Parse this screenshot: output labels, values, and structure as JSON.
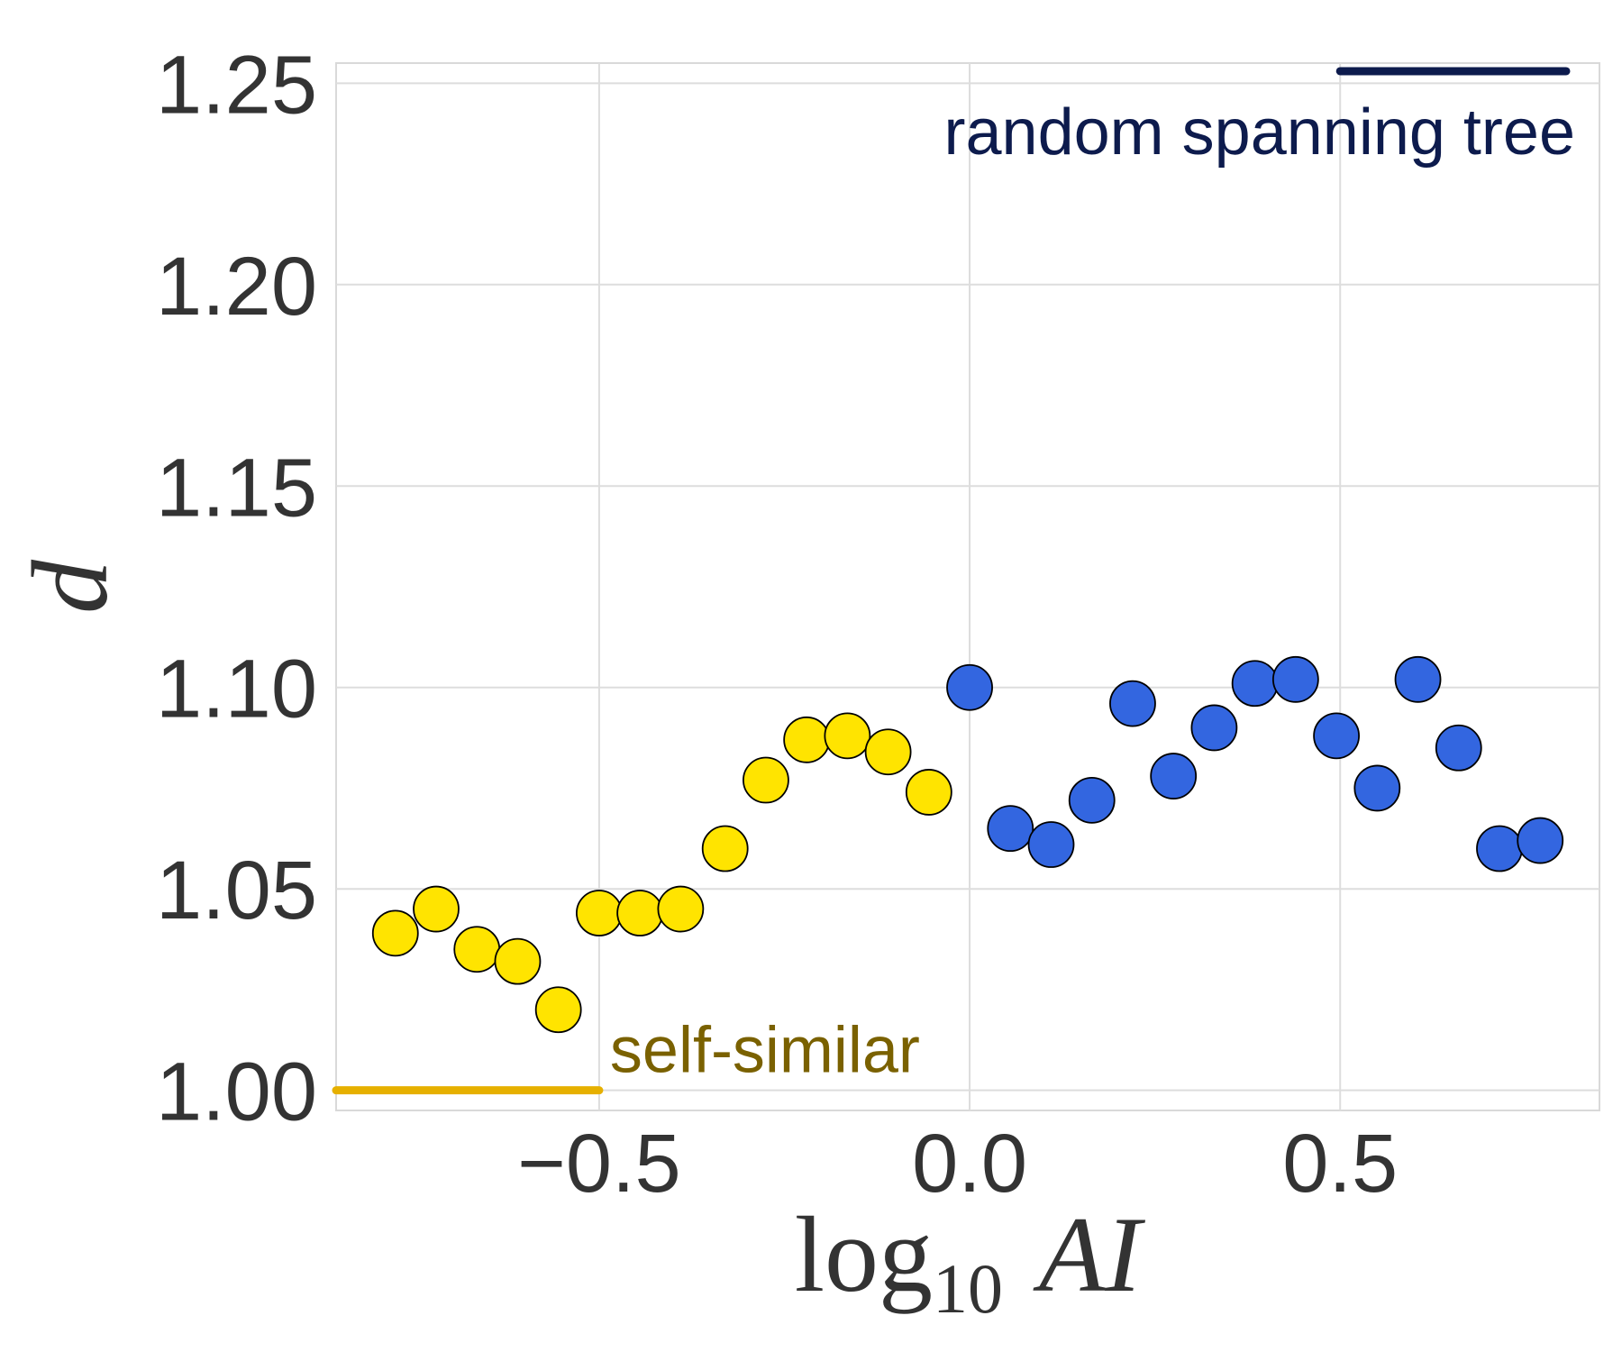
{
  "chart_data": {
    "type": "scatter",
    "title": "",
    "xlabel": {
      "prefix": "log",
      "subscript": "10",
      "var": "AI"
    },
    "ylabel": "d",
    "xlim": [
      -0.855,
      0.85
    ],
    "ylim": [
      0.995,
      1.255
    ],
    "xticks": [
      -0.5,
      0.0,
      0.5
    ],
    "xtick_labels": [
      "−0.5",
      "0.0",
      "0.5"
    ],
    "yticks": [
      1.0,
      1.05,
      1.1,
      1.15,
      1.2,
      1.25
    ],
    "ytick_labels": [
      "1.00",
      "1.05",
      "1.10",
      "1.15",
      "1.20",
      "1.25"
    ],
    "grid": true,
    "series": [
      {
        "color": "#FFE400",
        "x": [
          -0.775,
          -0.72,
          -0.665,
          -0.61,
          -0.555,
          -0.5,
          -0.445,
          -0.39,
          -0.33,
          -0.275,
          -0.22,
          -0.165,
          -0.11,
          -0.055
        ],
        "y": [
          1.039,
          1.045,
          1.035,
          1.032,
          1.02,
          1.044,
          1.044,
          1.045,
          1.06,
          1.077,
          1.087,
          1.088,
          1.084,
          1.074
        ]
      },
      {
        "color": "#3366E0",
        "x": [
          0.0,
          0.055,
          0.11,
          0.165,
          0.22,
          0.275,
          0.33,
          0.385,
          0.44,
          0.495,
          0.55,
          0.605,
          0.66,
          0.715,
          0.77
        ],
        "y": [
          1.1,
          1.065,
          1.061,
          1.072,
          1.096,
          1.078,
          1.09,
          1.101,
          1.102,
          1.088,
          1.075,
          1.102,
          1.085,
          1.06,
          1.062
        ]
      }
    ],
    "reference_lines": [
      {
        "label": "self-similar",
        "y": 1.0,
        "x_range": [
          -0.855,
          -0.5
        ],
        "color": "#E6B000",
        "text_color": "#7A6100"
      },
      {
        "label": "random spanning tree",
        "y": 1.253,
        "x_range": [
          0.5,
          0.805
        ],
        "color": "#0D1B4D",
        "text_color": "#0D1B4D"
      }
    ]
  }
}
